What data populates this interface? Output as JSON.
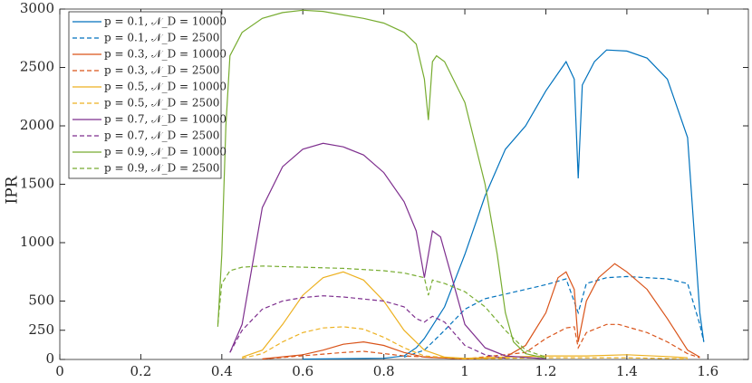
{
  "chart_data": {
    "type": "line",
    "y_label": "IPR",
    "xlim": [
      0,
      1.7
    ],
    "xticks": [
      0,
      0.2,
      0.4,
      0.6,
      0.8,
      1,
      1.2,
      1.4,
      1.6
    ],
    "ylim": [
      0,
      3000
    ],
    "yticks": [
      0,
      250,
      500,
      1000,
      1500,
      2000,
      2500,
      3000
    ],
    "series": [
      {
        "name": "p = 0.1, 𝒩_D = 10000",
        "color": "#0072BD",
        "dash": false,
        "x": [
          0.6,
          0.8,
          0.85,
          0.88,
          0.9,
          0.95,
          1.0,
          1.05,
          1.1,
          1.15,
          1.2,
          1.25,
          1.27,
          1.28,
          1.29,
          1.32,
          1.35,
          1.4,
          1.45,
          1.5,
          1.55,
          1.58,
          1.59
        ],
        "values": [
          3,
          10,
          30,
          100,
          180,
          450,
          900,
          1400,
          1800,
          2000,
          2300,
          2550,
          2400,
          1550,
          2350,
          2550,
          2650,
          2640,
          2580,
          2400,
          1900,
          400,
          150
        ]
      },
      {
        "name": "p = 0.1, 𝒩_D = 2500",
        "color": "#0072BD",
        "dash": true,
        "x": [
          0.85,
          0.9,
          0.95,
          1.0,
          1.05,
          1.1,
          1.2,
          1.25,
          1.28,
          1.3,
          1.35,
          1.4,
          1.5,
          1.55,
          1.58,
          1.59
        ],
        "values": [
          20,
          80,
          250,
          430,
          520,
          560,
          640,
          690,
          400,
          650,
          700,
          710,
          690,
          650,
          300,
          150
        ]
      },
      {
        "name": "p = 0.3, 𝒩_D = 10000",
        "color": "#D95319",
        "dash": false,
        "x": [
          0.5,
          0.6,
          0.65,
          0.7,
          0.75,
          0.8,
          0.85,
          0.9,
          1.0,
          1.1,
          1.15,
          1.2,
          1.23,
          1.25,
          1.27,
          1.28,
          1.3,
          1.33,
          1.37,
          1.4,
          1.45,
          1.5,
          1.55,
          1.58
        ],
        "values": [
          5,
          40,
          80,
          130,
          150,
          120,
          60,
          20,
          5,
          20,
          120,
          400,
          700,
          750,
          600,
          150,
          500,
          700,
          820,
          750,
          600,
          350,
          80,
          20
        ]
      },
      {
        "name": "p = 0.3, 𝒩_D = 2500",
        "color": "#D95319",
        "dash": true,
        "x": [
          0.5,
          0.7,
          0.75,
          0.85,
          1.0,
          1.15,
          1.2,
          1.25,
          1.27,
          1.28,
          1.3,
          1.35,
          1.38,
          1.45,
          1.5,
          1.55,
          1.58
        ],
        "values": [
          3,
          60,
          70,
          30,
          5,
          60,
          180,
          270,
          280,
          100,
          230,
          300,
          300,
          230,
          150,
          50,
          15
        ]
      },
      {
        "name": "p = 0.5, 𝒩_D = 10000",
        "color": "#EDB120",
        "dash": false,
        "x": [
          0.45,
          0.5,
          0.55,
          0.6,
          0.65,
          0.7,
          0.75,
          0.8,
          0.85,
          0.9,
          0.95,
          1.0,
          1.2,
          1.3,
          1.4,
          1.5,
          1.55
        ],
        "values": [
          20,
          80,
          300,
          550,
          700,
          750,
          680,
          500,
          250,
          80,
          20,
          10,
          30,
          30,
          40,
          25,
          15
        ]
      },
      {
        "name": "p = 0.5, 𝒩_D = 2500",
        "color": "#EDB120",
        "dash": true,
        "x": [
          0.45,
          0.5,
          0.55,
          0.6,
          0.65,
          0.7,
          0.75,
          0.8,
          0.85,
          0.9,
          1.0,
          1.2,
          1.4,
          1.55
        ],
        "values": [
          10,
          50,
          150,
          230,
          270,
          280,
          260,
          190,
          100,
          30,
          5,
          15,
          15,
          5
        ]
      },
      {
        "name": "p = 0.7, 𝒩_D = 10000",
        "color": "#7E2F8E",
        "dash": false,
        "x": [
          0.42,
          0.45,
          0.48,
          0.5,
          0.55,
          0.6,
          0.65,
          0.7,
          0.75,
          0.8,
          0.85,
          0.88,
          0.9,
          0.92,
          0.94,
          0.96,
          1.0,
          1.05,
          1.1,
          1.2
        ],
        "values": [
          60,
          300,
          900,
          1300,
          1650,
          1800,
          1850,
          1820,
          1750,
          1600,
          1350,
          1100,
          700,
          1100,
          1050,
          800,
          300,
          100,
          30,
          5
        ]
      },
      {
        "name": "p = 0.7, 𝒩_D = 2500",
        "color": "#7E2F8E",
        "dash": true,
        "x": [
          0.42,
          0.45,
          0.5,
          0.55,
          0.6,
          0.65,
          0.7,
          0.8,
          0.85,
          0.88,
          0.9,
          0.92,
          0.95,
          1.0,
          1.05,
          1.1
        ],
        "values": [
          60,
          250,
          430,
          500,
          530,
          545,
          535,
          500,
          450,
          350,
          320,
          370,
          320,
          120,
          40,
          10
        ]
      },
      {
        "name": "p = 0.9, 𝒩_D = 10000",
        "color": "#77AC30",
        "dash": false,
        "x": [
          0.39,
          0.4,
          0.41,
          0.42,
          0.45,
          0.5,
          0.55,
          0.6,
          0.65,
          0.7,
          0.75,
          0.8,
          0.85,
          0.88,
          0.9,
          0.91,
          0.92,
          0.93,
          0.95,
          1.0,
          1.05,
          1.08,
          1.1,
          1.12,
          1.15,
          1.2
        ],
        "values": [
          280,
          900,
          2000,
          2600,
          2800,
          2920,
          2970,
          2990,
          2980,
          2950,
          2920,
          2880,
          2800,
          2700,
          2400,
          2050,
          2550,
          2600,
          2550,
          2200,
          1500,
          900,
          400,
          150,
          50,
          10
        ]
      },
      {
        "name": "p = 0.9, 𝒩_D = 2500",
        "color": "#77AC30",
        "dash": true,
        "x": [
          0.39,
          0.4,
          0.42,
          0.45,
          0.5,
          0.6,
          0.7,
          0.8,
          0.85,
          0.9,
          0.91,
          0.92,
          0.95,
          1.0,
          1.05,
          1.1,
          1.15,
          1.2
        ],
        "values": [
          300,
          650,
          760,
          790,
          800,
          790,
          780,
          760,
          740,
          700,
          550,
          680,
          650,
          580,
          450,
          250,
          80,
          20
        ]
      }
    ]
  }
}
